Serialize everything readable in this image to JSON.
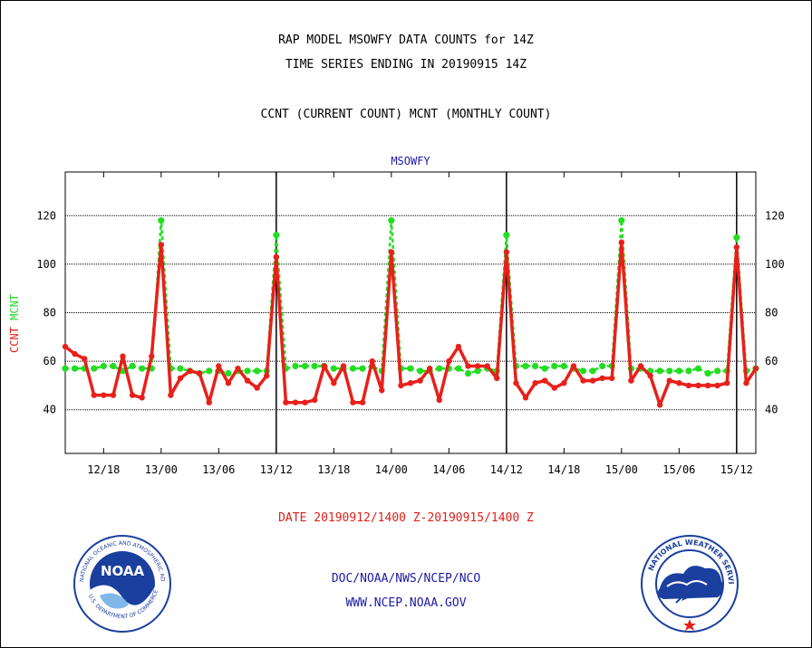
{
  "header": {
    "title_line1": "RAP MODEL MSOWFY DATA COUNTS for 14Z",
    "title_line2": "TIME SERIES ENDING IN 20190915 14Z",
    "subtitle": "CCNT (CURRENT COUNT) MCNT (MONTHLY COUNT)"
  },
  "footer": {
    "date_range": "DATE 20190912/1400 Z-20190915/1400 Z",
    "org": "DOC/NOAA/NWS/NCEP/NCO",
    "url": "WWW.NCEP.NOAA.GOV"
  },
  "logos": {
    "left": {
      "name": "noaa-logo",
      "text": "NOAA",
      "ring_text": "NATIONAL OCEANIC AND ATMOSPHERIC ADMINISTRATION · U.S. DEPARTMENT OF COMMERCE"
    },
    "right": {
      "name": "nws-logo",
      "ring_text": "NATIONAL WEATHER SERVICE"
    }
  },
  "colors": {
    "ccnt": "#e8201a",
    "mcnt": "#22dd22",
    "axis": "#000000",
    "label_blue": "#1a1aa8"
  },
  "chart_data": {
    "type": "line",
    "title": "MSOWFY",
    "ylabel_parts": [
      {
        "text": "CCNT",
        "color": "#e8201a"
      },
      {
        "text": "MCNT",
        "color": "#22dd22"
      }
    ],
    "xlim": [
      0,
      72
    ],
    "ylim": [
      22,
      138
    ],
    "yticks": [
      40,
      60,
      80,
      100,
      120
    ],
    "grid": "horizontal dotted",
    "x_ticks": [
      {
        "x": 4,
        "label": "12/18"
      },
      {
        "x": 10,
        "label": "13/00"
      },
      {
        "x": 16,
        "label": "13/06"
      },
      {
        "x": 22,
        "label": "13/12"
      },
      {
        "x": 28,
        "label": "13/18"
      },
      {
        "x": 34,
        "label": "14/00"
      },
      {
        "x": 40,
        "label": "14/06"
      },
      {
        "x": 46,
        "label": "14/12"
      },
      {
        "x": 52,
        "label": "14/18"
      },
      {
        "x": 58,
        "label": "15/00"
      },
      {
        "x": 64,
        "label": "15/06"
      },
      {
        "x": 70,
        "label": "15/12"
      }
    ],
    "day_boundaries": [
      22,
      46,
      70
    ],
    "series": [
      {
        "name": "CCNT",
        "color": "#e8201a",
        "values": [
          66,
          63,
          61,
          46,
          46,
          46,
          62,
          46,
          45,
          62,
          108,
          46,
          53,
          56,
          55,
          43,
          58,
          51,
          57,
          52,
          49,
          54,
          103,
          43,
          43,
          43,
          44,
          58,
          51,
          58,
          43,
          43,
          60,
          48,
          105,
          50,
          51,
          52,
          57,
          44,
          60,
          66,
          58,
          58,
          58,
          53,
          105,
          51,
          45,
          51,
          52,
          49,
          51,
          58,
          52,
          52,
          53,
          53,
          109,
          52,
          58,
          54,
          42,
          52,
          51,
          50,
          50,
          50,
          50,
          51,
          107,
          51,
          57
        ]
      },
      {
        "name": "MCNT",
        "color": "#22dd22",
        "values": [
          57,
          57,
          57,
          57,
          58,
          58,
          56,
          58,
          57,
          57,
          118,
          57,
          57,
          56,
          55,
          56,
          56,
          55,
          56,
          56,
          56,
          56,
          112,
          57,
          58,
          58,
          58,
          58,
          57,
          57,
          57,
          57,
          58,
          56,
          118,
          57,
          57,
          56,
          56,
          57,
          57,
          57,
          55,
          56,
          57,
          56,
          112,
          58,
          58,
          58,
          57,
          58,
          58,
          57,
          56,
          56,
          58,
          58,
          118,
          57,
          57,
          56,
          56,
          56,
          56,
          56,
          57,
          55,
          56,
          56,
          111,
          56,
          57
        ]
      }
    ]
  }
}
